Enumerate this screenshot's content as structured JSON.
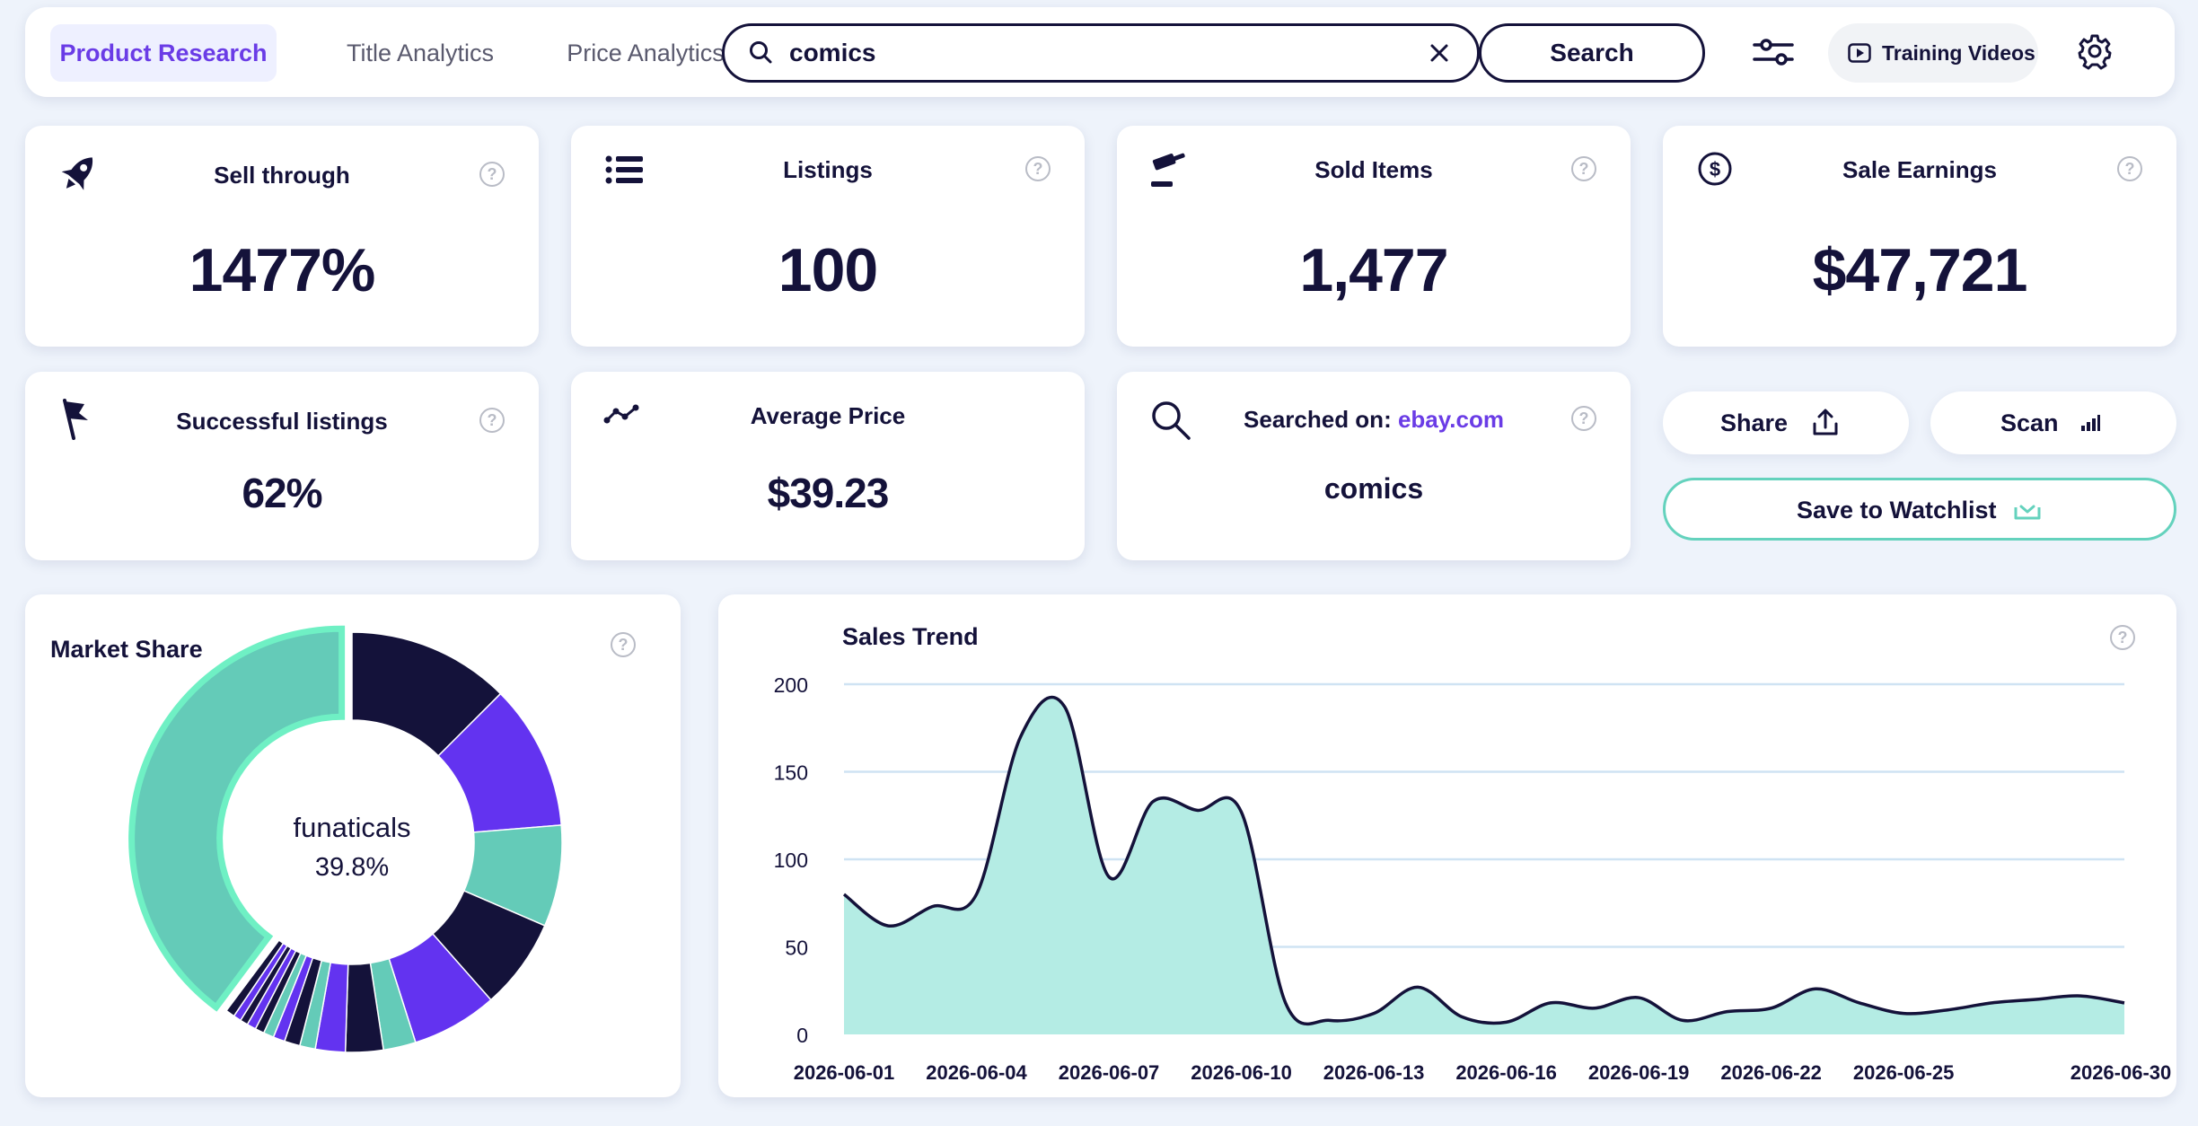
{
  "nav": {
    "tabs": [
      {
        "label": "Product Research",
        "active": true
      },
      {
        "label": "Title Analytics",
        "active": false
      },
      {
        "label": "Price Analytics",
        "active": false
      }
    ],
    "search_value": "comics",
    "search_button": "Search",
    "training_videos": "Training Videos"
  },
  "kpis": {
    "sell_through": {
      "title": "Sell through",
      "value": "1477%"
    },
    "listings": {
      "title": "Listings",
      "value": "100"
    },
    "sold_items": {
      "title": "Sold Items",
      "value": "1,477"
    },
    "sale_earnings": {
      "title": "Sale Earnings",
      "value": "$47,721"
    },
    "successful_listings": {
      "title": "Successful listings",
      "value": "62%"
    },
    "average_price": {
      "title": "Average Price",
      "value": "$39.23"
    },
    "searched_on": {
      "label": "Searched on:",
      "site": "ebay.com",
      "query": "comics"
    }
  },
  "actions": {
    "share": "Share",
    "scan": "Scan",
    "save_watchlist": "Save to Watchlist"
  },
  "help_glyph": "?",
  "market_share": {
    "title": "Market Share",
    "center_name": "funaticals",
    "center_value": "39.8%"
  },
  "sales_trend": {
    "title": "Sales Trend"
  },
  "colors": {
    "accent": "#6a3ce6",
    "navy": "#14123a",
    "teal": "#64cbb8",
    "area": "#b4ece4",
    "highlight": "#6ff0c4"
  },
  "chart_data": [
    {
      "type": "pie",
      "title": "Market Share",
      "slices": [
        {
          "label": "funaticals",
          "value": 39.8,
          "color": "#64cbb8"
        },
        {
          "value": 12.5,
          "color": "#14123a"
        },
        {
          "value": 11.2,
          "color": "#6333f0"
        },
        {
          "value": 7.8,
          "color": "#64cbb8"
        },
        {
          "value": 7.0,
          "color": "#14123a"
        },
        {
          "value": 6.6,
          "color": "#6333f0"
        },
        {
          "value": 2.5,
          "color": "#64cbb8"
        },
        {
          "value": 2.9,
          "color": "#14123a"
        },
        {
          "value": 2.3,
          "color": "#6333f0"
        },
        {
          "value": 1.2,
          "color": "#64cbb8"
        },
        {
          "value": 1.2,
          "color": "#14123a"
        },
        {
          "value": 0.9,
          "color": "#6333f0"
        },
        {
          "value": 0.8,
          "color": "#64cbb8"
        },
        {
          "value": 0.7,
          "color": "#14123a"
        },
        {
          "value": 0.7,
          "color": "#6333f0"
        },
        {
          "value": 0.6,
          "color": "#14123a"
        },
        {
          "value": 0.6,
          "color": "#6333f0"
        },
        {
          "value": 0.7,
          "color": "#14123a"
        }
      ]
    },
    {
      "type": "area",
      "title": "Sales Trend",
      "ylim": [
        0,
        200
      ],
      "yticks": [
        0,
        50,
        100,
        150,
        200
      ],
      "xlabels": [
        "2026-06-01",
        "2026-06-04",
        "2026-06-07",
        "2026-06-10",
        "2026-06-13",
        "2026-06-16",
        "2026-06-19",
        "2026-06-22",
        "2026-06-25",
        "2026-06-30"
      ],
      "x": [
        "2026-06-01",
        "2026-06-02",
        "2026-06-03",
        "2026-06-04",
        "2026-06-05",
        "2026-06-06",
        "2026-06-07",
        "2026-06-08",
        "2026-06-09",
        "2026-06-10",
        "2026-06-11",
        "2026-06-12",
        "2026-06-13",
        "2026-06-14",
        "2026-06-15",
        "2026-06-16",
        "2026-06-17",
        "2026-06-18",
        "2026-06-19",
        "2026-06-20",
        "2026-06-21",
        "2026-06-22",
        "2026-06-23",
        "2026-06-24",
        "2026-06-25",
        "2026-06-26",
        "2026-06-27",
        "2026-06-28",
        "2026-06-29",
        "2026-06-30"
      ],
      "values": [
        80,
        62,
        73,
        80,
        170,
        187,
        90,
        133,
        128,
        127,
        18,
        8,
        12,
        27,
        10,
        7,
        18,
        15,
        21,
        8,
        13,
        15,
        26,
        18,
        12,
        14,
        18,
        20,
        22,
        18
      ],
      "grid": true
    }
  ]
}
